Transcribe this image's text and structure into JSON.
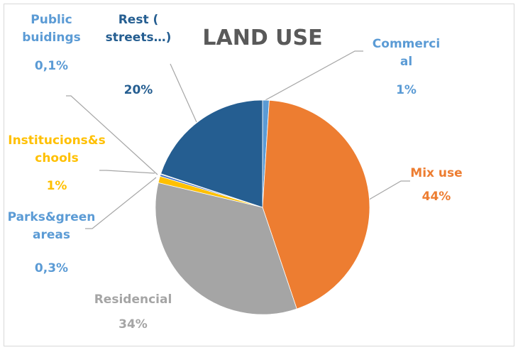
{
  "chart_data": {
    "type": "pie",
    "title": "LAND USE",
    "categories": [
      "Commercial",
      "Mix use",
      "Residencial",
      "Institucions&schools",
      "Parks&green areas",
      "Public buidings",
      "Rest ( streets…)"
    ],
    "values": [
      1,
      44,
      34,
      1,
      0.3,
      0.1,
      20
    ],
    "value_labels": [
      "1%",
      "44%",
      "34%",
      "1%",
      "0,3%",
      "0,1%",
      "20%"
    ],
    "colors": [
      "#5b9bd5",
      "#ed7d31",
      "#a5a5a5",
      "#ffc000",
      "#4472c4",
      "#70ad47",
      "#255e91"
    ],
    "label_colors": [
      "#5b9bd5",
      "#ed7d31",
      "#a5a5a5",
      "#ffc000",
      "#5b9bd5",
      "#5b9bd5",
      "#255e91"
    ]
  }
}
